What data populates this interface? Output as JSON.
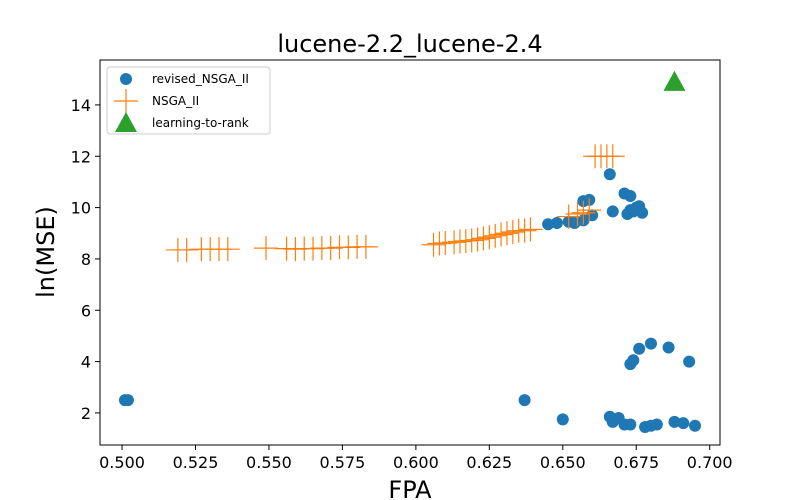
{
  "chart_data": {
    "type": "scatter",
    "title": "lucene-2.2_lucene-2.4",
    "xlabel": "FPA",
    "ylabel": "ln(MSE)",
    "xlim": [
      0.4925,
      0.7035
    ],
    "ylim": [
      0.75,
      15.75
    ],
    "xticks": [
      0.5,
      0.525,
      0.55,
      0.575,
      0.6,
      0.625,
      0.65,
      0.675,
      0.7
    ],
    "xtick_labels": [
      "0.500",
      "0.525",
      "0.550",
      "0.575",
      "0.600",
      "0.625",
      "0.650",
      "0.675",
      "0.700"
    ],
    "yticks": [
      2,
      4,
      6,
      8,
      10,
      12,
      14
    ],
    "ytick_labels": [
      "2",
      "4",
      "6",
      "8",
      "10",
      "12",
      "14"
    ],
    "grid": false,
    "legend_position": "top-left",
    "series": [
      {
        "name": "revised_NSGA_II",
        "marker": "circle",
        "color": "#1f77b4",
        "points": [
          [
            0.501,
            2.5
          ],
          [
            0.502,
            2.5
          ],
          [
            0.637,
            2.5
          ],
          [
            0.65,
            1.75
          ],
          [
            0.666,
            1.85
          ],
          [
            0.667,
            1.65
          ],
          [
            0.669,
            1.8
          ],
          [
            0.671,
            1.55
          ],
          [
            0.673,
            1.55
          ],
          [
            0.678,
            1.45
          ],
          [
            0.68,
            1.5
          ],
          [
            0.682,
            1.55
          ],
          [
            0.688,
            1.65
          ],
          [
            0.691,
            1.6
          ],
          [
            0.695,
            1.5
          ],
          [
            0.673,
            3.9
          ],
          [
            0.674,
            4.05
          ],
          [
            0.676,
            4.5
          ],
          [
            0.68,
            4.7
          ],
          [
            0.686,
            4.55
          ],
          [
            0.693,
            4.0
          ],
          [
            0.645,
            9.35
          ],
          [
            0.648,
            9.4
          ],
          [
            0.652,
            9.45
          ],
          [
            0.654,
            9.4
          ],
          [
            0.657,
            9.5
          ],
          [
            0.66,
            9.7
          ],
          [
            0.657,
            10.25
          ],
          [
            0.659,
            10.3
          ],
          [
            0.666,
            11.3
          ],
          [
            0.667,
            9.85
          ],
          [
            0.671,
            10.55
          ],
          [
            0.673,
            10.45
          ],
          [
            0.672,
            9.75
          ],
          [
            0.673,
            9.9
          ],
          [
            0.674,
            9.85
          ],
          [
            0.675,
            10.0
          ],
          [
            0.676,
            10.05
          ],
          [
            0.677,
            9.8
          ]
        ]
      },
      {
        "name": "NSGA_II",
        "marker": "plus",
        "color": "#ff7f0e",
        "points": [
          [
            0.519,
            8.35
          ],
          [
            0.522,
            8.35
          ],
          [
            0.527,
            8.38
          ],
          [
            0.53,
            8.38
          ],
          [
            0.533,
            8.38
          ],
          [
            0.536,
            8.38
          ],
          [
            0.549,
            8.42
          ],
          [
            0.556,
            8.4
          ],
          [
            0.559,
            8.38
          ],
          [
            0.562,
            8.4
          ],
          [
            0.565,
            8.4
          ],
          [
            0.568,
            8.42
          ],
          [
            0.571,
            8.42
          ],
          [
            0.574,
            8.45
          ],
          [
            0.577,
            8.45
          ],
          [
            0.58,
            8.47
          ],
          [
            0.583,
            8.47
          ],
          [
            0.606,
            8.55
          ],
          [
            0.608,
            8.6
          ],
          [
            0.61,
            8.62
          ],
          [
            0.613,
            8.65
          ],
          [
            0.615,
            8.68
          ],
          [
            0.617,
            8.7
          ],
          [
            0.619,
            8.72
          ],
          [
            0.621,
            8.75
          ],
          [
            0.623,
            8.8
          ],
          [
            0.625,
            8.85
          ],
          [
            0.627,
            8.9
          ],
          [
            0.629,
            8.95
          ],
          [
            0.631,
            9.0
          ],
          [
            0.633,
            9.05
          ],
          [
            0.635,
            9.1
          ],
          [
            0.637,
            9.1
          ],
          [
            0.639,
            9.15
          ],
          [
            0.652,
            9.65
          ],
          [
            0.655,
            9.75
          ],
          [
            0.657,
            9.8
          ],
          [
            0.659,
            9.9
          ],
          [
            0.661,
            12.0
          ],
          [
            0.663,
            12.0
          ],
          [
            0.665,
            12.0
          ],
          [
            0.667,
            12.0
          ]
        ]
      },
      {
        "name": "learning-to-rank",
        "marker": "triangle",
        "color": "#2ca02c",
        "points": [
          [
            0.688,
            14.9
          ]
        ]
      }
    ]
  }
}
